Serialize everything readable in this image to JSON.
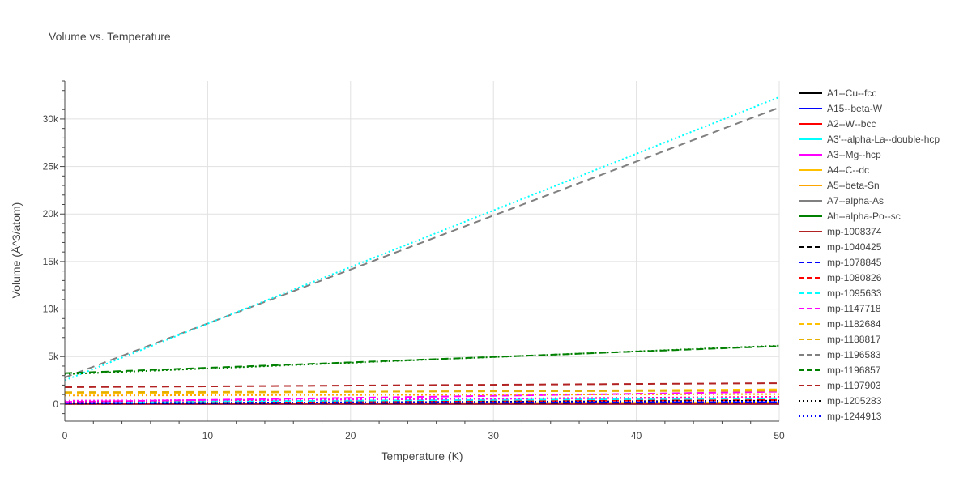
{
  "chart_data": {
    "type": "line",
    "title": "Volume vs. Temperature",
    "xlabel": "Temperature (K)",
    "ylabel": "Volume (Å^3/atom)",
    "xlim": [
      0,
      50
    ],
    "ylim": [
      -1800,
      34000
    ],
    "xticks": [
      0,
      10,
      20,
      30,
      40,
      50
    ],
    "xtick_labels": [
      "0",
      "10",
      "20",
      "30",
      "40",
      "50"
    ],
    "yticks": [
      0,
      5000,
      10000,
      15000,
      20000,
      25000,
      30000
    ],
    "ytick_labels": [
      "0",
      "5k",
      "10k",
      "15k",
      "20k",
      "25k",
      "30k"
    ],
    "grid": true,
    "legend_position": "right",
    "series": [
      {
        "name": "A1--Cu--fcc",
        "color": "#000000",
        "dash": "solid",
        "x": [
          0,
          50
        ],
        "y": [
          12,
          14
        ]
      },
      {
        "name": "A15--beta-W",
        "color": "#0000ff",
        "dash": "solid",
        "x": [
          0,
          50
        ],
        "y": [
          16,
          18
        ]
      },
      {
        "name": "A2--W--bcc",
        "color": "#ff0000",
        "dash": "solid",
        "x": [
          0,
          50
        ],
        "y": [
          20,
          22
        ]
      },
      {
        "name": "A3'--alpha-La--double-hcp",
        "color": "#00ffff",
        "dash": "solid",
        "x": [
          0,
          50
        ],
        "y": [
          35,
          38
        ]
      },
      {
        "name": "A3--Mg--hcp",
        "color": "#ff00ff",
        "dash": "solid",
        "x": [
          0,
          50
        ],
        "y": [
          23,
          25
        ]
      },
      {
        "name": "A4--C--dc",
        "color": "#ffc000",
        "dash": "solid",
        "x": [
          0,
          50
        ],
        "y": [
          20,
          160
        ]
      },
      {
        "name": "A5--beta-Sn",
        "color": "#ffa500",
        "dash": "solid",
        "x": [
          0,
          50
        ],
        "y": [
          27,
          30
        ]
      },
      {
        "name": "A7--alpha-As",
        "color": "#808080",
        "dash": "solid",
        "x": [
          0,
          50
        ],
        "y": [
          22,
          25
        ]
      },
      {
        "name": "Ah--alpha-Po--sc",
        "color": "#008000",
        "dash": "solid",
        "x": [
          0,
          50
        ],
        "y": [
          38,
          42
        ]
      },
      {
        "name": "mp-1008374",
        "color": "#b22222",
        "dash": "solid",
        "x": [
          0,
          50
        ],
        "y": [
          30,
          33
        ]
      },
      {
        "name": "mp-1040425",
        "color": "#000000",
        "dash": "dash",
        "x": [
          0,
          50
        ],
        "y": [
          60,
          150
        ]
      },
      {
        "name": "mp-1078845",
        "color": "#0000ff",
        "dash": "dash",
        "x": [
          0,
          50
        ],
        "y": [
          80,
          200
        ]
      },
      {
        "name": "mp-1080826",
        "color": "#ff0000",
        "dash": "dash",
        "x": [
          0,
          50
        ],
        "y": [
          150,
          420
        ]
      },
      {
        "name": "mp-1095633",
        "color": "#00ffff",
        "dash": "dash",
        "x": [
          0,
          50
        ],
        "y": [
          200,
          600
        ]
      },
      {
        "name": "mp-1147718",
        "color": "#ff00ff",
        "dash": "dash",
        "x": [
          0,
          50
        ],
        "y": [
          220,
          1300
        ]
      },
      {
        "name": "mp-1182684",
        "color": "#ffc000",
        "dash": "dash",
        "x": [
          0,
          50
        ],
        "y": [
          1100,
          1550
        ]
      },
      {
        "name": "mp-1188817",
        "color": "#e6b000",
        "dash": "dash",
        "x": [
          0,
          50
        ],
        "y": [
          1250,
          1400
        ]
      },
      {
        "name": "mp-1196583",
        "color": "#808080",
        "dash": "dash",
        "x": [
          0,
          50
        ],
        "y": [
          2800,
          31200
        ]
      },
      {
        "name": "mp-1196857",
        "color": "#008000",
        "dash": "dash",
        "x": [
          0,
          50
        ],
        "y": [
          3250,
          6100
        ]
      },
      {
        "name": "mp-1197903",
        "color": "#b22222",
        "dash": "dash",
        "x": [
          0,
          50
        ],
        "y": [
          1780,
          2200
        ]
      },
      {
        "name": "mp-1205283",
        "color": "#000000",
        "dash": "dot",
        "x": [
          0,
          50
        ],
        "y": [
          60,
          350
        ]
      },
      {
        "name": "mp-1244913",
        "color": "#0000ff",
        "dash": "dot",
        "x": [
          0,
          50
        ],
        "y": [
          120,
          250
        ]
      },
      {
        "name": "",
        "color": "#ff0000",
        "dash": "dot",
        "x": [
          0,
          50
        ],
        "y": [
          300,
          750
        ]
      },
      {
        "name": "",
        "color": "#ff00ff",
        "dash": "dot",
        "x": [
          0,
          50
        ],
        "y": [
          350,
          700
        ]
      },
      {
        "name": "",
        "color": "#ffa500",
        "dash": "dot",
        "x": [
          0,
          50
        ],
        "y": [
          900,
          1050
        ]
      },
      {
        "name": "",
        "color": "#00ffff",
        "dash": "dot",
        "x": [
          0,
          50
        ],
        "y": [
          2500,
          32300
        ]
      },
      {
        "name": "",
        "color": "#008000",
        "dash": "dot",
        "x": [
          0,
          50
        ],
        "y": [
          3150,
          6150
        ]
      }
    ]
  }
}
